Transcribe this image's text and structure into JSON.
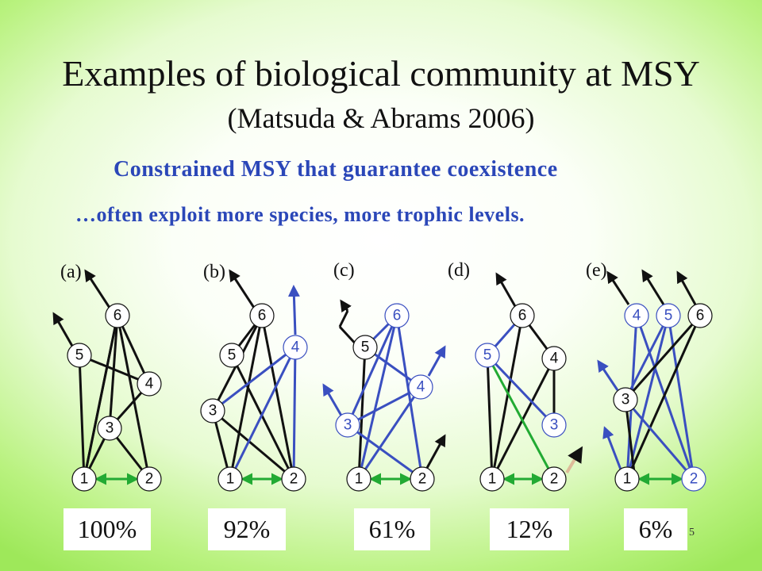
{
  "title": "Examples of biological community at MSY",
  "subtitle": "(Matsuda & Abrams 2006)",
  "line1": "Constrained MSY that guarantee coexistence",
  "line2": "…often exploit more species, more trophic levels.",
  "page_number": "5",
  "colors": {
    "blue": "#3a4fc0",
    "black": "#111111",
    "green": "#22aa33"
  },
  "panels": [
    {
      "label": "(a)",
      "percent": "100%"
    },
    {
      "label": "(b)",
      "percent": "92%"
    },
    {
      "label": "(c)",
      "percent": "61%"
    },
    {
      "label": "(d)",
      "percent": "12%"
    },
    {
      "label": "(e)",
      "percent": "6%"
    }
  ]
}
